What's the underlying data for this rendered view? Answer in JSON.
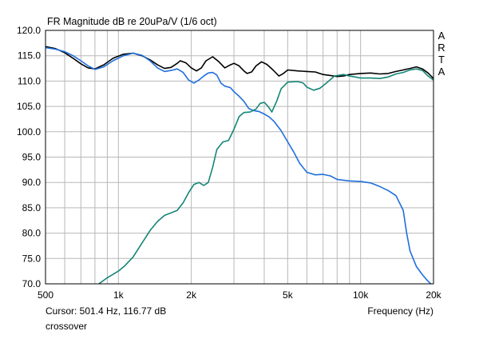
{
  "chart_data": {
    "type": "line",
    "title": "FR Magnitude dB re 20uPa/V (1/6 oct)",
    "xlabel": "Frequency (Hz)",
    "ylabel": "",
    "x_scale": "log",
    "xlim": [
      500,
      20000
    ],
    "ylim": [
      70,
      120
    ],
    "y_ticks": [
      "70.0",
      "75.0",
      "80.0",
      "85.0",
      "90.0",
      "95.0",
      "100.0",
      "105.0",
      "110.0",
      "115.0",
      "120.0"
    ],
    "x_ticks": [
      {
        "value": 500,
        "label": "500"
      },
      {
        "value": 1000,
        "label": "1k"
      },
      {
        "value": 2000,
        "label": "2k"
      },
      {
        "value": 5000,
        "label": "5k"
      },
      {
        "value": 10000,
        "label": "10k"
      },
      {
        "value": 20000,
        "label": "20k"
      }
    ],
    "grid": true,
    "series": [
      {
        "color": "#000000",
        "points": [
          [
            500,
            116.8
          ],
          [
            550,
            116.4
          ],
          [
            600,
            115.6
          ],
          [
            650,
            114.5
          ],
          [
            700,
            113.4
          ],
          [
            750,
            112.6
          ],
          [
            800,
            112.4
          ],
          [
            870,
            113.2
          ],
          [
            950,
            114.5
          ],
          [
            1050,
            115.3
          ],
          [
            1150,
            115.5
          ],
          [
            1250,
            115.0
          ],
          [
            1350,
            114.2
          ],
          [
            1450,
            113.2
          ],
          [
            1550,
            112.5
          ],
          [
            1650,
            112.7
          ],
          [
            1750,
            113.5
          ],
          [
            1800,
            114.0
          ],
          [
            1900,
            113.6
          ],
          [
            2000,
            112.6
          ],
          [
            2100,
            112.0
          ],
          [
            2200,
            112.6
          ],
          [
            2300,
            114.0
          ],
          [
            2450,
            114.8
          ],
          [
            2600,
            113.8
          ],
          [
            2750,
            112.6
          ],
          [
            2900,
            113.2
          ],
          [
            3000,
            113.5
          ],
          [
            3150,
            113.0
          ],
          [
            3300,
            112.0
          ],
          [
            3400,
            111.5
          ],
          [
            3550,
            111.8
          ],
          [
            3700,
            113.0
          ],
          [
            3900,
            113.8
          ],
          [
            4100,
            113.3
          ],
          [
            4350,
            112.2
          ],
          [
            4600,
            111.0
          ],
          [
            4800,
            111.5
          ],
          [
            5000,
            112.2
          ],
          [
            5500,
            112.0
          ],
          [
            6000,
            111.9
          ],
          [
            6500,
            111.8
          ],
          [
            7000,
            111.3
          ],
          [
            7500,
            111.1
          ],
          [
            8000,
            110.9
          ],
          [
            8500,
            111.0
          ],
          [
            9000,
            111.3
          ],
          [
            10000,
            111.5
          ],
          [
            11000,
            111.6
          ],
          [
            12000,
            111.4
          ],
          [
            13000,
            111.5
          ],
          [
            14000,
            111.9
          ],
          [
            15000,
            112.2
          ],
          [
            16000,
            112.5
          ],
          [
            17000,
            112.8
          ],
          [
            18000,
            112.4
          ],
          [
            19000,
            111.6
          ],
          [
            20000,
            110.5
          ]
        ]
      },
      {
        "color": "#1f6fdd",
        "points": [
          [
            500,
            116.6
          ],
          [
            550,
            116.3
          ],
          [
            600,
            115.8
          ],
          [
            650,
            115.0
          ],
          [
            700,
            114.0
          ],
          [
            750,
            113.0
          ],
          [
            800,
            112.3
          ],
          [
            870,
            112.8
          ],
          [
            950,
            114.0
          ],
          [
            1050,
            115.0
          ],
          [
            1150,
            115.5
          ],
          [
            1250,
            115.1
          ],
          [
            1350,
            114.0
          ],
          [
            1450,
            112.6
          ],
          [
            1550,
            111.9
          ],
          [
            1650,
            112.1
          ],
          [
            1750,
            112.4
          ],
          [
            1850,
            111.7
          ],
          [
            1950,
            110.2
          ],
          [
            2050,
            109.6
          ],
          [
            2150,
            110.2
          ],
          [
            2250,
            111.0
          ],
          [
            2350,
            111.6
          ],
          [
            2450,
            111.7
          ],
          [
            2550,
            111.2
          ],
          [
            2650,
            109.6
          ],
          [
            2750,
            109.0
          ],
          [
            2900,
            108.7
          ],
          [
            3000,
            107.9
          ],
          [
            3150,
            107.0
          ],
          [
            3300,
            106.0
          ],
          [
            3450,
            104.6
          ],
          [
            3600,
            104.2
          ],
          [
            3800,
            104.0
          ],
          [
            4000,
            103.5
          ],
          [
            4200,
            102.9
          ],
          [
            4400,
            102.0
          ],
          [
            4700,
            100.2
          ],
          [
            5000,
            98.0
          ],
          [
            5300,
            96.0
          ],
          [
            5600,
            93.8
          ],
          [
            6000,
            92.0
          ],
          [
            6500,
            91.5
          ],
          [
            7000,
            91.6
          ],
          [
            7500,
            91.3
          ],
          [
            8000,
            90.6
          ],
          [
            9000,
            90.3
          ],
          [
            10000,
            90.2
          ],
          [
            11000,
            89.9
          ],
          [
            12000,
            89.2
          ],
          [
            13000,
            88.4
          ],
          [
            14000,
            87.4
          ],
          [
            15000,
            84.5
          ],
          [
            15500,
            80.0
          ],
          [
            16000,
            76.5
          ],
          [
            17000,
            73.4
          ],
          [
            18000,
            71.8
          ],
          [
            19000,
            70.5
          ],
          [
            19500,
            70.0
          ]
        ]
      },
      {
        "color": "#138677",
        "points": [
          [
            830,
            70.0
          ],
          [
            900,
            71.2
          ],
          [
            1000,
            72.5
          ],
          [
            1060,
            73.5
          ],
          [
            1150,
            75.3
          ],
          [
            1250,
            78.0
          ],
          [
            1350,
            80.5
          ],
          [
            1450,
            82.3
          ],
          [
            1550,
            83.5
          ],
          [
            1650,
            84.0
          ],
          [
            1750,
            84.5
          ],
          [
            1850,
            86.0
          ],
          [
            1950,
            88.0
          ],
          [
            2050,
            89.6
          ],
          [
            2150,
            90.0
          ],
          [
            2250,
            89.4
          ],
          [
            2350,
            90.0
          ],
          [
            2450,
            93.0
          ],
          [
            2550,
            96.5
          ],
          [
            2700,
            98.0
          ],
          [
            2850,
            98.3
          ],
          [
            3000,
            100.5
          ],
          [
            3150,
            103.0
          ],
          [
            3300,
            103.8
          ],
          [
            3500,
            103.9
          ],
          [
            3700,
            104.5
          ],
          [
            3850,
            105.6
          ],
          [
            4000,
            105.8
          ],
          [
            4150,
            105.0
          ],
          [
            4300,
            103.9
          ],
          [
            4500,
            106.0
          ],
          [
            4700,
            108.5
          ],
          [
            5000,
            109.8
          ],
          [
            5500,
            109.9
          ],
          [
            5800,
            109.6
          ],
          [
            6000,
            108.8
          ],
          [
            6400,
            108.2
          ],
          [
            6800,
            108.6
          ],
          [
            7300,
            109.8
          ],
          [
            7800,
            111.0
          ],
          [
            8500,
            111.3
          ],
          [
            9000,
            111.0
          ],
          [
            9500,
            110.8
          ],
          [
            10000,
            110.6
          ],
          [
            11000,
            110.6
          ],
          [
            12000,
            110.5
          ],
          [
            13000,
            110.8
          ],
          [
            14000,
            111.4
          ],
          [
            15000,
            111.7
          ],
          [
            16000,
            112.2
          ],
          [
            17000,
            112.4
          ],
          [
            18000,
            112.1
          ],
          [
            19000,
            111.0
          ],
          [
            20000,
            110.2
          ]
        ]
      }
    ],
    "side_label": [
      "A",
      "R",
      "T",
      "A"
    ],
    "cursor_readout": "Cursor: 501.4 Hz, 116.77 dB",
    "caption": "crossover"
  }
}
